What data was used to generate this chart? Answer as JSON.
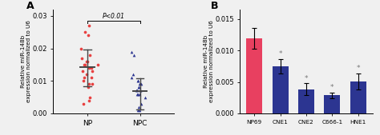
{
  "panel_A": {
    "label": "A",
    "xlabel_NP": "NP",
    "xlabel_NPC": "NPC",
    "ylabel": "Relative miR-148b\nexpression normalized to U6",
    "ylim": [
      0.0,
      0.032
    ],
    "yticks": [
      0.0,
      0.01,
      0.02,
      0.03
    ],
    "NP_mean": 0.0143,
    "NP_sd_upper": 0.0197,
    "NP_sd_lower": 0.0083,
    "NPC_mean": 0.0068,
    "NPC_sd_upper": 0.0108,
    "NPC_sd_lower": 0.0012,
    "NP_points": [
      0.027,
      0.025,
      0.024,
      0.02,
      0.018,
      0.017,
      0.016,
      0.016,
      0.015,
      0.015,
      0.015,
      0.014,
      0.014,
      0.013,
      0.013,
      0.012,
      0.011,
      0.011,
      0.01,
      0.009,
      0.009,
      0.008,
      0.005,
      0.004,
      0.003
    ],
    "NPC_points": [
      0.019,
      0.018,
      0.012,
      0.011,
      0.01,
      0.01,
      0.009,
      0.009,
      0.008,
      0.008,
      0.007,
      0.007,
      0.007,
      0.007,
      0.006,
      0.006,
      0.006,
      0.005,
      0.003,
      0.002,
      0.001,
      0.001
    ],
    "NP_color": "#e84040",
    "NPC_color": "#2c3591",
    "mean_line_color": "#444444",
    "sig_text": "P<0.01",
    "fig_bg": "#f0f0f0"
  },
  "panel_B": {
    "label": "B",
    "ylabel": "Relative miR-148b\nexpression normalized to U6",
    "ylim": [
      0.0,
      0.0165
    ],
    "yticks": [
      0.0,
      0.005,
      0.01,
      0.015
    ],
    "categories": [
      "NP69",
      "CNE1",
      "CNE2",
      "C666-1",
      "HNE1"
    ],
    "values": [
      0.01195,
      0.0075,
      0.0038,
      0.0029,
      0.0051
    ],
    "errors": [
      0.00165,
      0.00115,
      0.00095,
      0.00045,
      0.00125
    ],
    "bar_colors": [
      "#e84060",
      "#2c3591",
      "#2c3591",
      "#2c3591",
      "#2c3591"
    ],
    "sig_color": "#777777"
  }
}
